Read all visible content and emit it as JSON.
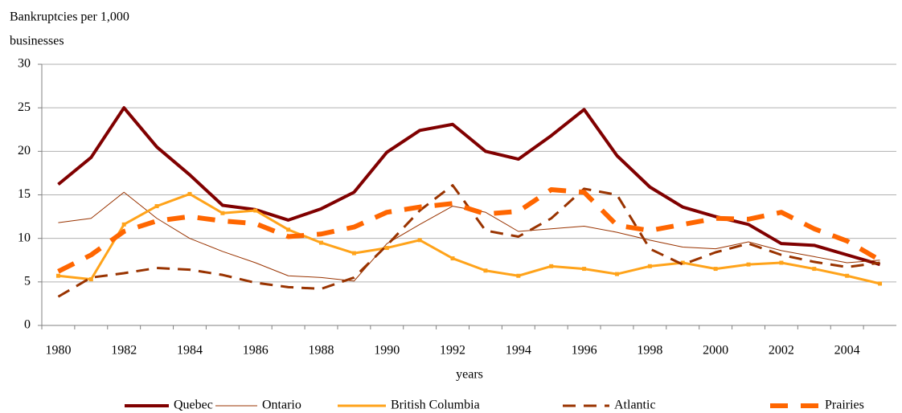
{
  "chart_data": {
    "type": "line",
    "ylabel": [
      "Bankruptcies per 1,000",
      "businesses"
    ],
    "xlabel": "years",
    "categories": [
      "1980",
      null,
      "1982",
      null,
      "1984",
      null,
      "1986",
      null,
      "1988",
      null,
      "1990",
      null,
      "1992",
      null,
      "1994",
      null,
      "1996",
      null,
      "1998",
      null,
      "2000",
      null,
      "2002",
      null,
      "2004",
      null
    ],
    "ylim": [
      0,
      30
    ],
    "yticks": [
      0,
      5,
      10,
      15,
      20,
      25,
      30
    ],
    "grid": true,
    "legend": "bottom",
    "series": [
      {
        "name": "Quebec",
        "color": "#800000",
        "values": [
          16.2,
          19.3,
          25.0,
          20.5,
          17.3,
          13.8,
          13.3,
          12.1,
          13.4,
          15.3,
          19.9,
          22.4,
          23.1,
          20.0,
          19.1,
          21.8,
          24.8,
          19.5,
          15.9,
          13.6,
          12.5,
          11.6,
          9.4,
          9.2,
          8.1,
          7.0
        ]
      },
      {
        "name": "Ontario",
        "color": "#993300",
        "values": [
          11.8,
          12.3,
          15.3,
          12.3,
          10.0,
          8.5,
          7.2,
          5.7,
          5.5,
          5.1,
          9.4,
          11.6,
          13.7,
          13.0,
          10.8,
          11.1,
          11.4,
          10.7,
          9.8,
          9.0,
          8.8,
          9.6,
          8.6,
          7.9,
          7.2,
          7.5
        ]
      },
      {
        "name": "British Columbia",
        "color": "#FFA31A",
        "values": [
          5.7,
          5.3,
          11.6,
          13.7,
          15.1,
          12.9,
          13.2,
          11.0,
          9.5,
          8.3,
          8.9,
          9.8,
          7.7,
          6.3,
          5.7,
          6.8,
          6.5,
          5.9,
          6.8,
          7.2,
          6.5,
          7.0,
          7.2,
          6.5,
          5.7,
          4.8
        ]
      },
      {
        "name": "Atlantic",
        "color": "#993300",
        "values": [
          3.3,
          5.5,
          6.0,
          6.6,
          6.4,
          5.8,
          4.9,
          4.4,
          4.2,
          5.5,
          9.2,
          13.2,
          16.1,
          10.9,
          10.2,
          12.3,
          15.7,
          15.0,
          8.8,
          7.0,
          8.4,
          9.4,
          8.1,
          7.3,
          6.7,
          7.2
        ]
      },
      {
        "name": "Prairies",
        "color": "#FF6600",
        "values": [
          6.2,
          8.1,
          10.8,
          12.0,
          12.5,
          12.0,
          11.7,
          10.2,
          10.5,
          11.3,
          13.0,
          13.6,
          14.0,
          12.8,
          13.1,
          15.6,
          15.3,
          11.5,
          10.9,
          11.6,
          12.3,
          12.2,
          13.0,
          11.1,
          9.7,
          7.5
        ]
      }
    ]
  }
}
